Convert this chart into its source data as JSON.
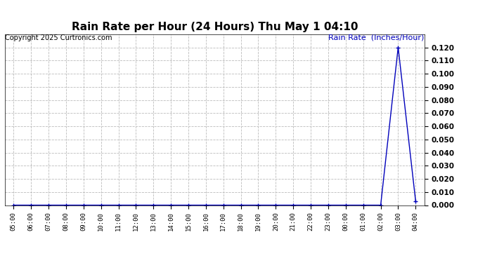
{
  "title": "Rain Rate per Hour (24 Hours) Thu May 1 04:10",
  "copyright": "Copyright 2025 Curtronics.com",
  "ylabel": "Rain Rate  (Inches/Hour)",
  "background_color": "#ffffff",
  "line_color": "#0000bb",
  "grid_color": "#bbbbbb",
  "title_fontsize": 11,
  "copyright_fontsize": 7,
  "ylabel_fontsize": 8,
  "tick_labels": [
    "05:00",
    "06:00",
    "07:00",
    "08:00",
    "09:00",
    "10:00",
    "11:00",
    "12:00",
    "13:00",
    "14:00",
    "15:00",
    "16:00",
    "17:00",
    "18:00",
    "19:00",
    "20:00",
    "21:00",
    "22:00",
    "23:00",
    "00:00",
    "01:00",
    "02:00",
    "03:00",
    "04:00"
  ],
  "x_values": [
    0,
    1,
    2,
    3,
    4,
    5,
    6,
    7,
    8,
    9,
    10,
    11,
    12,
    13,
    14,
    15,
    16,
    17,
    18,
    19,
    20,
    21,
    22,
    23
  ],
  "y_values": [
    0.0,
    0.0,
    0.0,
    0.0,
    0.0,
    0.0,
    0.0,
    0.0,
    0.0,
    0.0,
    0.0,
    0.0,
    0.0,
    0.0,
    0.0,
    0.0,
    0.0,
    0.0,
    0.0,
    0.0,
    0.0,
    0.0,
    0.12,
    0.003
  ],
  "ylim": [
    0.0,
    0.13
  ],
  "yticks": [
    0.0,
    0.01,
    0.02,
    0.03,
    0.04,
    0.05,
    0.06,
    0.07,
    0.08,
    0.09,
    0.1,
    0.11,
    0.12
  ],
  "ytick_labels": [
    "0.000",
    "0.010",
    "0.020",
    "0.030",
    "0.040",
    "0.050",
    "0.060",
    "0.070",
    "0.080",
    "0.090",
    "0.100",
    "0.110",
    "0.120"
  ],
  "marker": "+"
}
